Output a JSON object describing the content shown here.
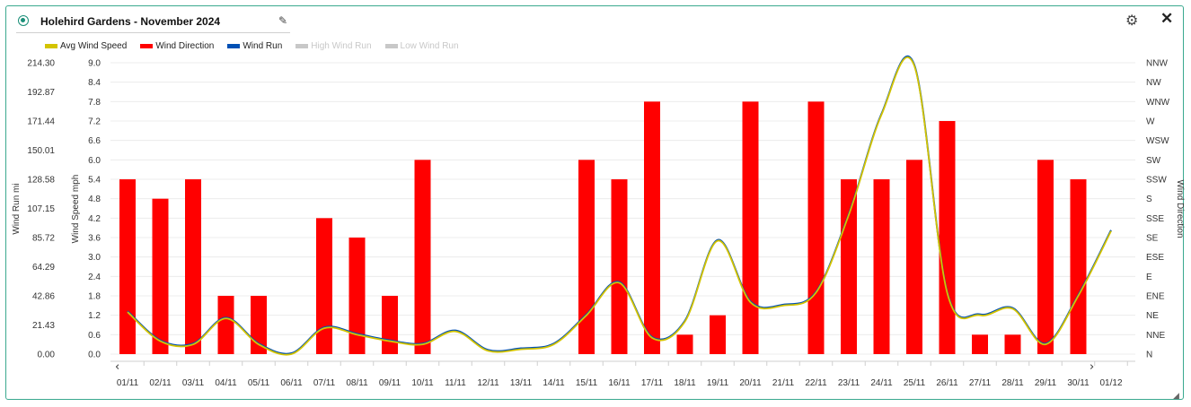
{
  "header": {
    "title": "Holehird Gardens - November 2024"
  },
  "legend": [
    {
      "label": "Avg Wind Speed",
      "color": "#d4c400",
      "enabled": true
    },
    {
      "label": "Wind Direction",
      "color": "#ff0000",
      "enabled": true
    },
    {
      "label": "Wind Run",
      "color": "#0050b4",
      "enabled": true
    },
    {
      "label": "High Wind Run",
      "color": "#c8c8c8",
      "enabled": false
    },
    {
      "label": "Low Wind Run",
      "color": "#c8c8c8",
      "enabled": false
    }
  ],
  "chart_data": {
    "type": "bar",
    "categories": [
      "01/11",
      "02/11",
      "03/11",
      "04/11",
      "05/11",
      "06/11",
      "07/11",
      "08/11",
      "09/11",
      "10/11",
      "11/11",
      "12/11",
      "13/11",
      "14/11",
      "15/11",
      "16/11",
      "17/11",
      "18/11",
      "19/11",
      "20/11",
      "21/11",
      "22/11",
      "23/11",
      "24/11",
      "25/11",
      "26/11",
      "27/11",
      "28/11",
      "29/11",
      "30/11",
      "01/12"
    ],
    "left_axis": {
      "label": "Wind Run mi",
      "ticks": [
        "214.30",
        "192.87",
        "171.44",
        "150.01",
        "128.58",
        "107.15",
        "85.72",
        "64.29",
        "42.86",
        "21.43",
        "0.00"
      ],
      "range": [
        0,
        214.3
      ]
    },
    "speed_axis": {
      "label": "Wind Speed mph",
      "ticks": [
        "9.0",
        "8.4",
        "7.8",
        "7.2",
        "6.6",
        "6.0",
        "5.4",
        "4.8",
        "4.2",
        "3.6",
        "3.0",
        "2.4",
        "1.8",
        "1.2",
        "0.6",
        "0.0"
      ],
      "range": [
        0,
        9
      ]
    },
    "right_axis": {
      "label": "Wind Direction",
      "ticks": [
        "NNW",
        "NW",
        "WNW",
        "W",
        "WSW",
        "SW",
        "SSW",
        "S",
        "SSE",
        "SE",
        "ESE",
        "E",
        "ENE",
        "NE",
        "NNE",
        "N"
      ]
    },
    "series": [
      {
        "name": "Avg Wind Speed",
        "type": "line",
        "color": "#d4c400",
        "values": [
          1.3,
          0.4,
          0.3,
          1.1,
          0.3,
          0.0,
          0.8,
          0.6,
          0.4,
          0.3,
          0.7,
          0.1,
          0.15,
          0.3,
          1.2,
          2.2,
          0.5,
          1.0,
          3.5,
          1.6,
          1.5,
          1.9,
          4.3,
          7.4,
          8.9,
          1.9,
          1.2,
          1.4,
          0.3,
          1.8,
          3.8
        ]
      },
      {
        "name": "Wind Run",
        "type": "line",
        "color": "#0050b4",
        "values": [
          30.9,
          9.5,
          7.1,
          26.1,
          7.1,
          0.0,
          19.0,
          14.3,
          9.5,
          7.1,
          16.7,
          2.4,
          3.6,
          7.1,
          28.6,
          52.4,
          11.9,
          23.8,
          83.3,
          38.1,
          35.7,
          45.2,
          102.4,
          176.2,
          212.0,
          45.2,
          28.6,
          33.3,
          7.1,
          42.9,
          90.5
        ]
      },
      {
        "name": "Wind Direction",
        "type": "bar",
        "color": "#ff0000",
        "values": [
          "SSW",
          "S",
          "SSW",
          "ENE",
          "ENE",
          null,
          "SSE",
          "SE",
          "ENE",
          "SW",
          null,
          null,
          null,
          null,
          "SW",
          "SSW",
          "WNW",
          "NNE",
          "NE",
          "WNW",
          null,
          "WNW",
          "SSW",
          "SSW",
          "SW",
          "W",
          "NNE",
          "NNE",
          "SW",
          "SSW",
          null
        ]
      }
    ],
    "grid": true
  }
}
